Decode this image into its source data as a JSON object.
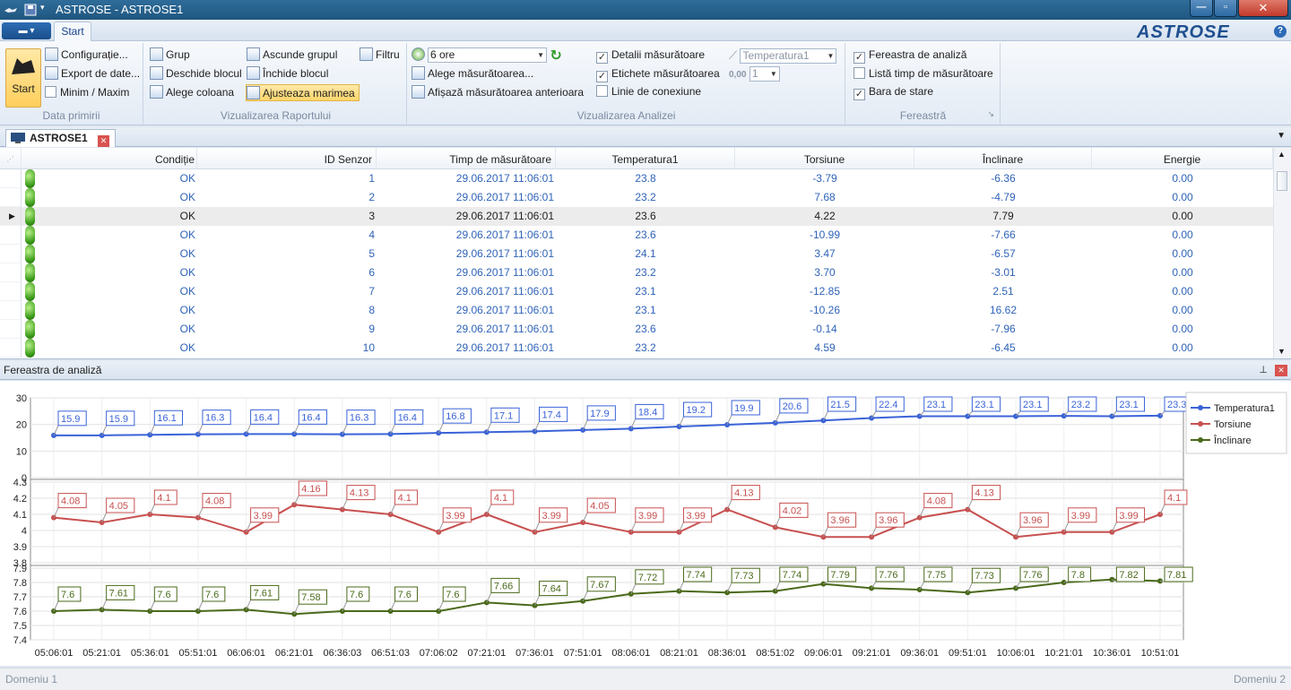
{
  "window": {
    "title": "ASTROSE - ASTROSE1"
  },
  "menu": {
    "tab_start": "Start",
    "logo": "ASTROSE",
    "help": "?"
  },
  "ribbon": {
    "start_label": "Start",
    "data_primirii": {
      "items": [
        "Configurație...",
        "Export de date...",
        "Minim / Maxim"
      ],
      "label": "Data primirii"
    },
    "vizualizarea_raportului": {
      "items": [
        "Grup",
        "Deschide blocul",
        "Alege coloana",
        "Ascunde grupul",
        "Închide blocul",
        "Ajusteaza marimea",
        "Filtru"
      ],
      "label": "Vizualizarea Raportului"
    },
    "analizei": {
      "period": "6 ore",
      "choose": "Alege măsurătoarea...",
      "show_prev": "Afișază măsurătoarea anterioara",
      "details": "Detalii măsurătoare",
      "labels": "Etichete măsurătoarea",
      "line": "Linie de conexiune",
      "param": "Temperatura1",
      "decimals_icon": "0,00",
      "decimals": "1",
      "label": "Vizualizarea Analizei"
    },
    "fereastra": {
      "analysis": "Fereastra de analiză",
      "timelist": "Listă timp de măsurătoare",
      "statusbar": "Bara de stare",
      "label": "Fereastră"
    }
  },
  "doc_tab": "ASTROSE1",
  "table": {
    "columns": [
      "Condiție",
      "ID Senzor",
      "Timp de măsurătoare",
      "Temperatura1",
      "Torsiune",
      "Înclinare",
      "Energie"
    ],
    "rows": [
      [
        "OK",
        "1",
        "29.06.2017 11:06:01",
        "23.8",
        "-3.79",
        "-6.36",
        "0.00"
      ],
      [
        "OK",
        "2",
        "29.06.2017 11:06:01",
        "23.2",
        "7.68",
        "-4.79",
        "0.00"
      ],
      [
        "OK",
        "3",
        "29.06.2017 11:06:01",
        "23.6",
        "4.22",
        "7.79",
        "0.00"
      ],
      [
        "OK",
        "4",
        "29.06.2017 11:06:01",
        "23.6",
        "-10.99",
        "-7.66",
        "0.00"
      ],
      [
        "OK",
        "5",
        "29.06.2017 11:06:01",
        "24.1",
        "3.47",
        "-6.57",
        "0.00"
      ],
      [
        "OK",
        "6",
        "29.06.2017 11:06:01",
        "23.2",
        "3.70",
        "-3.01",
        "0.00"
      ],
      [
        "OK",
        "7",
        "29.06.2017 11:06:01",
        "23.1",
        "-12.85",
        "2.51",
        "0.00"
      ],
      [
        "OK",
        "8",
        "29.06.2017 11:06:01",
        "23.1",
        "-10.26",
        "16.62",
        "0.00"
      ],
      [
        "OK",
        "9",
        "29.06.2017 11:06:01",
        "23.6",
        "-0.14",
        "-7.96",
        "0.00"
      ],
      [
        "OK",
        "10",
        "29.06.2017 11:06:01",
        "23.2",
        "4.59",
        "-6.45",
        "0.00"
      ]
    ],
    "selected_row": 2
  },
  "analysis_panel": {
    "title": "Fereastra de analiză"
  },
  "status": {
    "left": "Domeniu 1",
    "right": "Domeniu 2"
  },
  "colors": {
    "temp": "#3a63d8",
    "tors": "#c85050",
    "incl": "#4a6a1a"
  },
  "chart_data": {
    "type": "line",
    "x": [
      "05:06:01",
      "05:21:01",
      "05:36:01",
      "05:51:01",
      "06:06:01",
      "06:21:01",
      "06:36:03",
      "06:51:03",
      "07:06:02",
      "07:21:01",
      "07:36:01",
      "07:51:01",
      "08:06:01",
      "08:21:01",
      "08:36:01",
      "08:51:02",
      "09:06:01",
      "09:21:01",
      "09:36:01",
      "09:51:01",
      "10:06:01",
      "10:21:01",
      "10:36:01",
      "10:51:01"
    ],
    "series": [
      {
        "name": "Temperatura1",
        "values": [
          15.9,
          15.9,
          16.1,
          16.3,
          16.4,
          16.4,
          16.3,
          16.4,
          16.8,
          17.1,
          17.4,
          17.9,
          18.4,
          19.2,
          19.9,
          20.6,
          21.5,
          22.4,
          23.1,
          23.1,
          23.1,
          23.2,
          23.1,
          23.3
        ],
        "ylim": [
          0,
          30
        ],
        "ticks": [
          0,
          10,
          20,
          30
        ]
      },
      {
        "name": "Torsiune",
        "values": [
          4.08,
          4.05,
          4.1,
          4.08,
          3.99,
          4.16,
          4.13,
          4.1,
          3.99,
          4.1,
          3.99,
          4.05,
          3.99,
          3.99,
          4.13,
          4.02,
          3.96,
          3.96,
          4.08,
          4.13,
          3.96,
          3.99,
          3.99,
          4.1
        ],
        "ylim": [
          3.8,
          4.3
        ],
        "ticks": [
          3.8,
          3.9,
          4,
          4.1,
          4.2,
          4.3
        ]
      },
      {
        "name": "Înclinare",
        "values": [
          7.6,
          7.61,
          7.6,
          7.6,
          7.61,
          7.58,
          7.6,
          7.6,
          7.6,
          7.66,
          7.64,
          7.67,
          7.72,
          7.74,
          7.73,
          7.74,
          7.79,
          7.76,
          7.75,
          7.73,
          7.76,
          7.8,
          7.82,
          7.81
        ],
        "ylim": [
          7.4,
          7.9
        ],
        "ticks": [
          7.4,
          7.5,
          7.6,
          7.7,
          7.8,
          7.9
        ]
      }
    ],
    "legend": "right",
    "grid": true
  }
}
